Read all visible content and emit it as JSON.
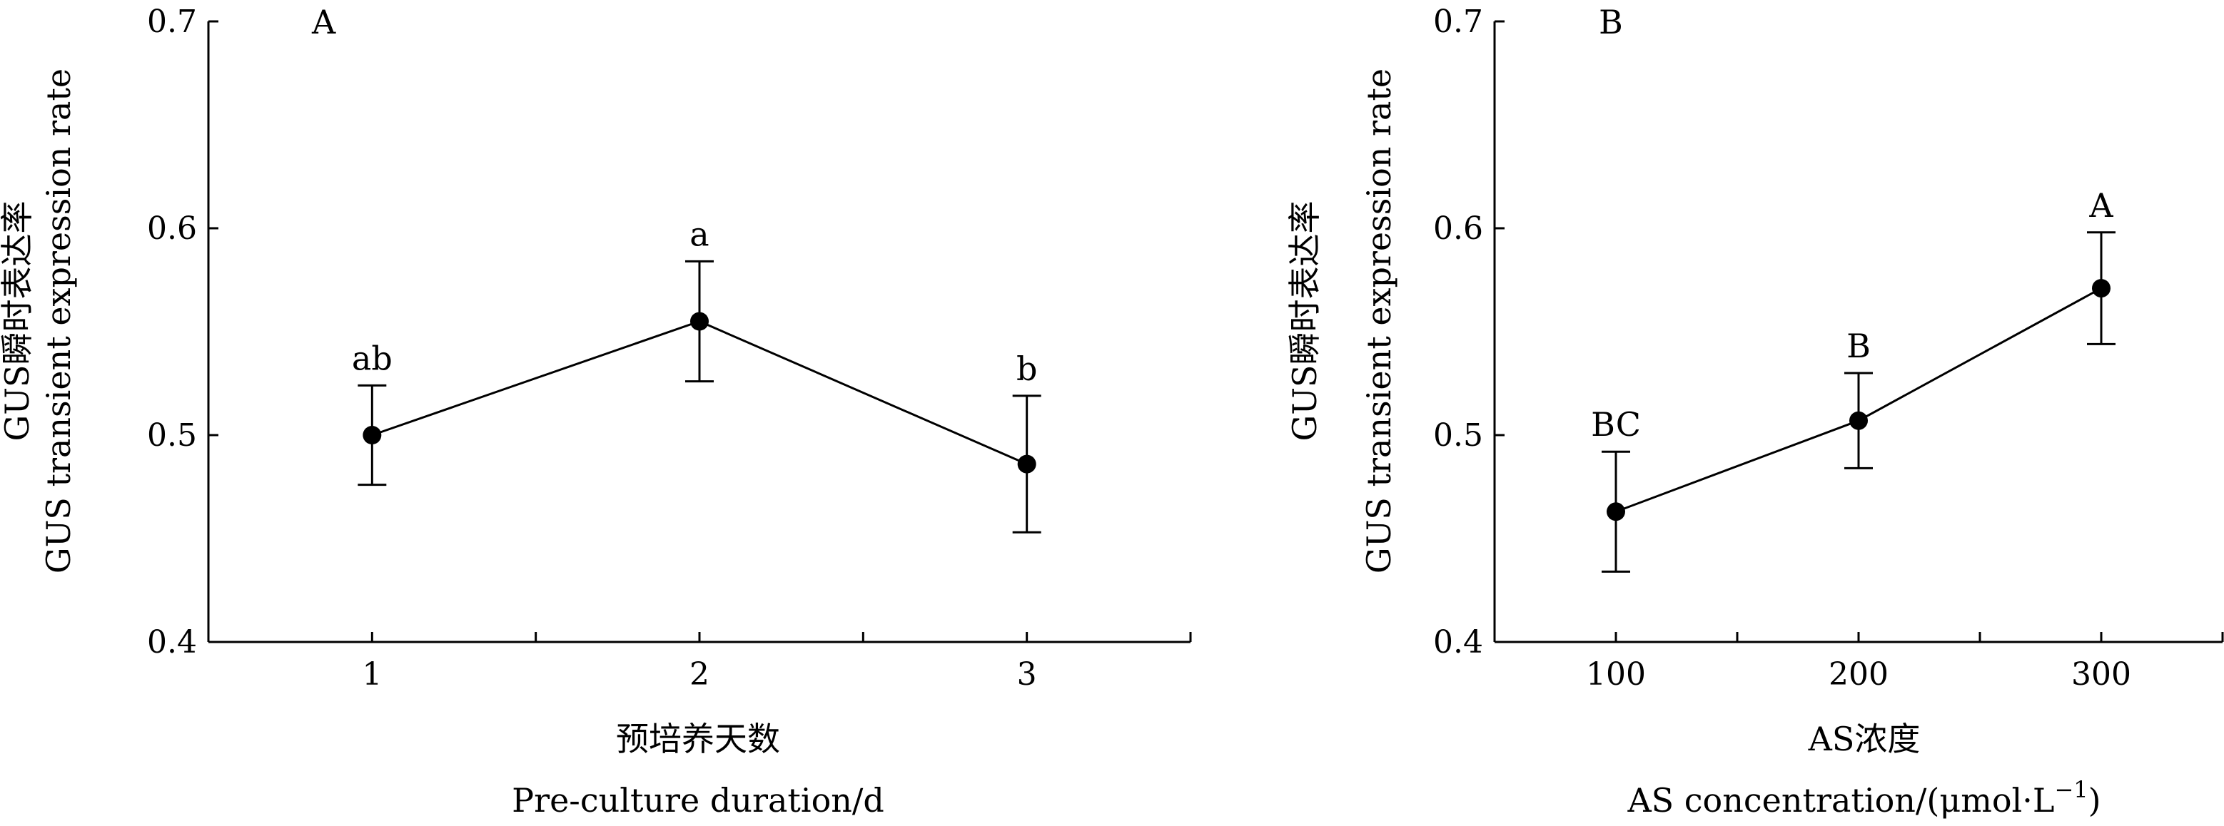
{
  "chart_data": [
    {
      "panel": "A",
      "type": "line",
      "x": [
        1,
        2,
        3
      ],
      "values": [
        0.5,
        0.555,
        0.486
      ],
      "error": [
        0.024,
        0.029,
        0.033
      ],
      "significance": [
        "ab",
        "a",
        "b"
      ],
      "xlabel_cn": "预培养天数",
      "xlabel_en": "Pre-culture duration/d",
      "ylabel_cn": "GUS瞬时表达率",
      "ylabel_en": "GUS transient expression rate",
      "xlim": [
        0.5,
        3.5
      ],
      "ylim": [
        0.4,
        0.7
      ],
      "xticks": [
        1,
        2,
        3
      ],
      "xtick_labels": [
        "1",
        "2",
        "3"
      ],
      "yticks": [
        0.4,
        0.5,
        0.6,
        0.7
      ],
      "ytick_labels": [
        "0.4",
        "0.5",
        "0.6",
        "0.7"
      ],
      "grid": false
    },
    {
      "panel": "B",
      "type": "line",
      "x": [
        100,
        200,
        300
      ],
      "values": [
        0.463,
        0.507,
        0.571
      ],
      "error": [
        0.029,
        0.023,
        0.027
      ],
      "significance": [
        "BC",
        "B",
        "A"
      ],
      "xlabel_cn": "AS浓度",
      "xlabel_en": "AS concentration/(μmol·L",
      "xlabel_en_sup": "−1",
      "xlabel_en_tail": ")",
      "ylabel_cn": "GUS瞬时表达率",
      "ylabel_en": "GUS transient expression rate",
      "xlim": [
        50,
        350
      ],
      "ylim": [
        0.4,
        0.7
      ],
      "xticks": [
        100,
        200,
        300
      ],
      "xtick_labels": [
        "100",
        "200",
        "300"
      ],
      "yticks": [
        0.4,
        0.5,
        0.6,
        0.7
      ],
      "ytick_labels": [
        "0.4",
        "0.5",
        "0.6",
        "0.7"
      ],
      "grid": false
    }
  ],
  "style": {
    "line_color": "#000000",
    "marker_color": "#000000"
  }
}
